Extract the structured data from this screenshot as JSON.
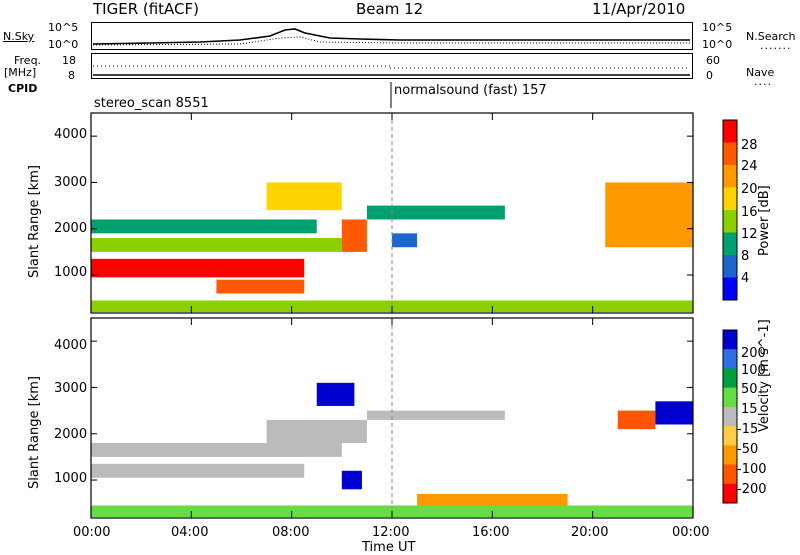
{
  "header": {
    "station": "TIGER (fitACF)",
    "beam": "Beam 12",
    "date": "11/Apr/2010"
  },
  "top_panels": {
    "nsky_label": "N.Sky",
    "nsky_ticks": [
      "10^5",
      "10^0"
    ],
    "nsky_right_ticks": [
      "10^5",
      "10^0"
    ],
    "nsearch_label": "N.Search",
    "freq_label": "Freq.",
    "freq_unit": "[MHz]",
    "freq_ticks": [
      "18",
      "8"
    ],
    "nave_ticks": [
      "60",
      "0"
    ],
    "nave_label": "Nave",
    "cpid_label": "CPID",
    "cpid_segments": [
      {
        "name": "stereo_scan",
        "id": "8551"
      },
      {
        "name": "normalsound (fast)",
        "id": "157"
      }
    ]
  },
  "axes": {
    "ylabel": "Slant Range [km]",
    "xlabel": "Time UT",
    "yticks": [
      "4000",
      "3000",
      "2000",
      "1000"
    ],
    "xticks": [
      "00:00",
      "04:00",
      "08:00",
      "12:00",
      "16:00",
      "20:00",
      "00:00"
    ]
  },
  "power_colorbar": {
    "label": "Power [dB]",
    "ticks": [
      "28",
      "24",
      "20",
      "16",
      "12",
      "8",
      "4"
    ],
    "colors": [
      "#ff0000",
      "#ff5a00",
      "#ff9900",
      "#ffd400",
      "#8bd100",
      "#00a070",
      "#1a66cc",
      "#0000ff"
    ]
  },
  "velocity_colorbar": {
    "label": "Velocity [m s^-1]",
    "ticks": [
      "200",
      "100",
      "50",
      "15",
      "-15",
      "-50",
      "-100",
      "-200"
    ],
    "colors": [
      "#0000d0",
      "#2d6ee0",
      "#00a040",
      "#66dd44",
      "#bbbbbb",
      "#ffcc44",
      "#ff9900",
      "#ff5500",
      "#ff0000"
    ]
  },
  "chart_data": {
    "type": "heatmap",
    "x_range": [
      "00:00",
      "00:00"
    ],
    "y_range": [
      180,
      4500
    ],
    "panels": [
      {
        "quantity": "Power",
        "regions": [
          {
            "t": [
              0.0,
              8.5
            ],
            "r": [
              950,
              1350
            ],
            "level": 28
          },
          {
            "t": [
              0.0,
              10.0
            ],
            "r": [
              1500,
              1800
            ],
            "level": 12
          },
          {
            "t": [
              0.0,
              9.0
            ],
            "r": [
              1900,
              2200
            ],
            "level": 8
          },
          {
            "t": [
              5.0,
              8.5
            ],
            "r": [
              600,
              900
            ],
            "level": 24
          },
          {
            "t": [
              7.0,
              10.0
            ],
            "r": [
              2400,
              3000
            ],
            "level": 16
          },
          {
            "t": [
              10.0,
              11.0
            ],
            "r": [
              1500,
              2200
            ],
            "level": 24
          },
          {
            "t": [
              11.0,
              16.5
            ],
            "r": [
              2200,
              2500
            ],
            "level": 8
          },
          {
            "t": [
              12.0,
              13.0
            ],
            "r": [
              1600,
              1900
            ],
            "level": 4
          },
          {
            "t": [
              20.5,
              24.0
            ],
            "r": [
              1600,
              3000
            ],
            "level": 20
          },
          {
            "t": [
              0.0,
              24.0
            ],
            "r": [
              200,
              450
            ],
            "level": 12
          }
        ]
      },
      {
        "quantity": "Velocity",
        "regions": [
          {
            "t": [
              0.0,
              8.5
            ],
            "r": [
              1050,
              1350
            ],
            "v": 0
          },
          {
            "t": [
              0.0,
              10.0
            ],
            "r": [
              1500,
              1800
            ],
            "v": 0
          },
          {
            "t": [
              7.0,
              11.0
            ],
            "r": [
              1800,
              2300
            ],
            "v": 0
          },
          {
            "t": [
              9.0,
              10.5
            ],
            "r": [
              2600,
              3100
            ],
            "v": 200
          },
          {
            "t": [
              10.0,
              10.8
            ],
            "r": [
              800,
              1200
            ],
            "v": 200
          },
          {
            "t": [
              11.0,
              16.5
            ],
            "r": [
              2300,
              2500
            ],
            "v": 0
          },
          {
            "t": [
              13.0,
              19.0
            ],
            "r": [
              300,
              700
            ],
            "v": -100
          },
          {
            "t": [
              21.0,
              22.5
            ],
            "r": [
              2100,
              2500
            ],
            "v": -200
          },
          {
            "t": [
              22.5,
              24.0
            ],
            "r": [
              2200,
              2700
            ],
            "v": 200
          },
          {
            "t": [
              0.0,
              24.0
            ],
            "r": [
              200,
              450
            ],
            "v": 15
          }
        ]
      }
    ]
  }
}
